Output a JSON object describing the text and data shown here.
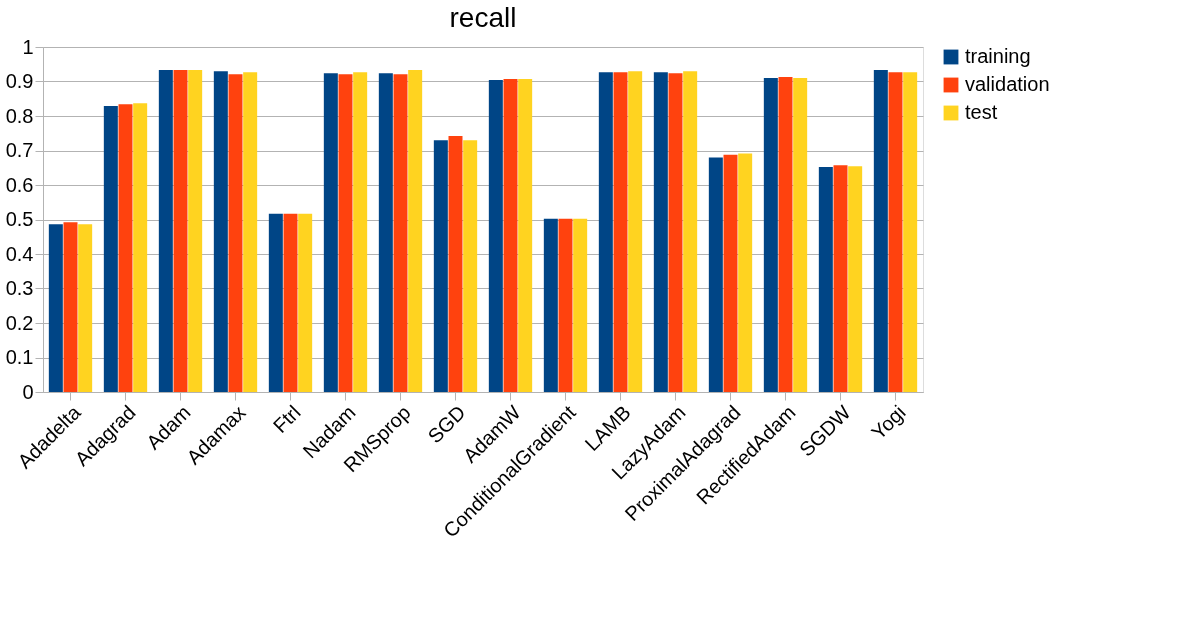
{
  "chart_data": {
    "type": "bar",
    "title": "recall",
    "categories": [
      "Adadelta",
      "Adagrad",
      "Adam",
      "Adamax",
      "Ftrl",
      "Nadam",
      "RMSprop",
      "SGD",
      "AdamW",
      "ConditionalGradient",
      "LAMB",
      "LazyAdam",
      "ProximalAdagrad",
      "RectifiedAdam",
      "SGDW",
      "Yogi"
    ],
    "series": [
      {
        "name": "training",
        "color": "#004586",
        "values": [
          0.486,
          0.829,
          0.933,
          0.93,
          0.517,
          0.924,
          0.924,
          0.73,
          0.904,
          0.502,
          0.927,
          0.927,
          0.68,
          0.91,
          0.652,
          0.933
        ]
      },
      {
        "name": "validation",
        "color": "#ff420e",
        "values": [
          0.492,
          0.834,
          0.933,
          0.921,
          0.517,
          0.921,
          0.921,
          0.742,
          0.907,
          0.502,
          0.927,
          0.924,
          0.688,
          0.913,
          0.657,
          0.927
        ]
      },
      {
        "name": "test",
        "color": "#ffd320",
        "values": [
          0.486,
          0.837,
          0.933,
          0.927,
          0.517,
          0.927,
          0.933,
          0.73,
          0.907,
          0.502,
          0.93,
          0.93,
          0.691,
          0.91,
          0.654,
          0.927
        ]
      }
    ],
    "ylim": [
      0,
      1
    ],
    "yticks": [
      0,
      0.1,
      0.2,
      0.3,
      0.4,
      0.5,
      0.6,
      0.7,
      0.8,
      0.9,
      1
    ],
    "grid": "y",
    "legend": "right"
  }
}
